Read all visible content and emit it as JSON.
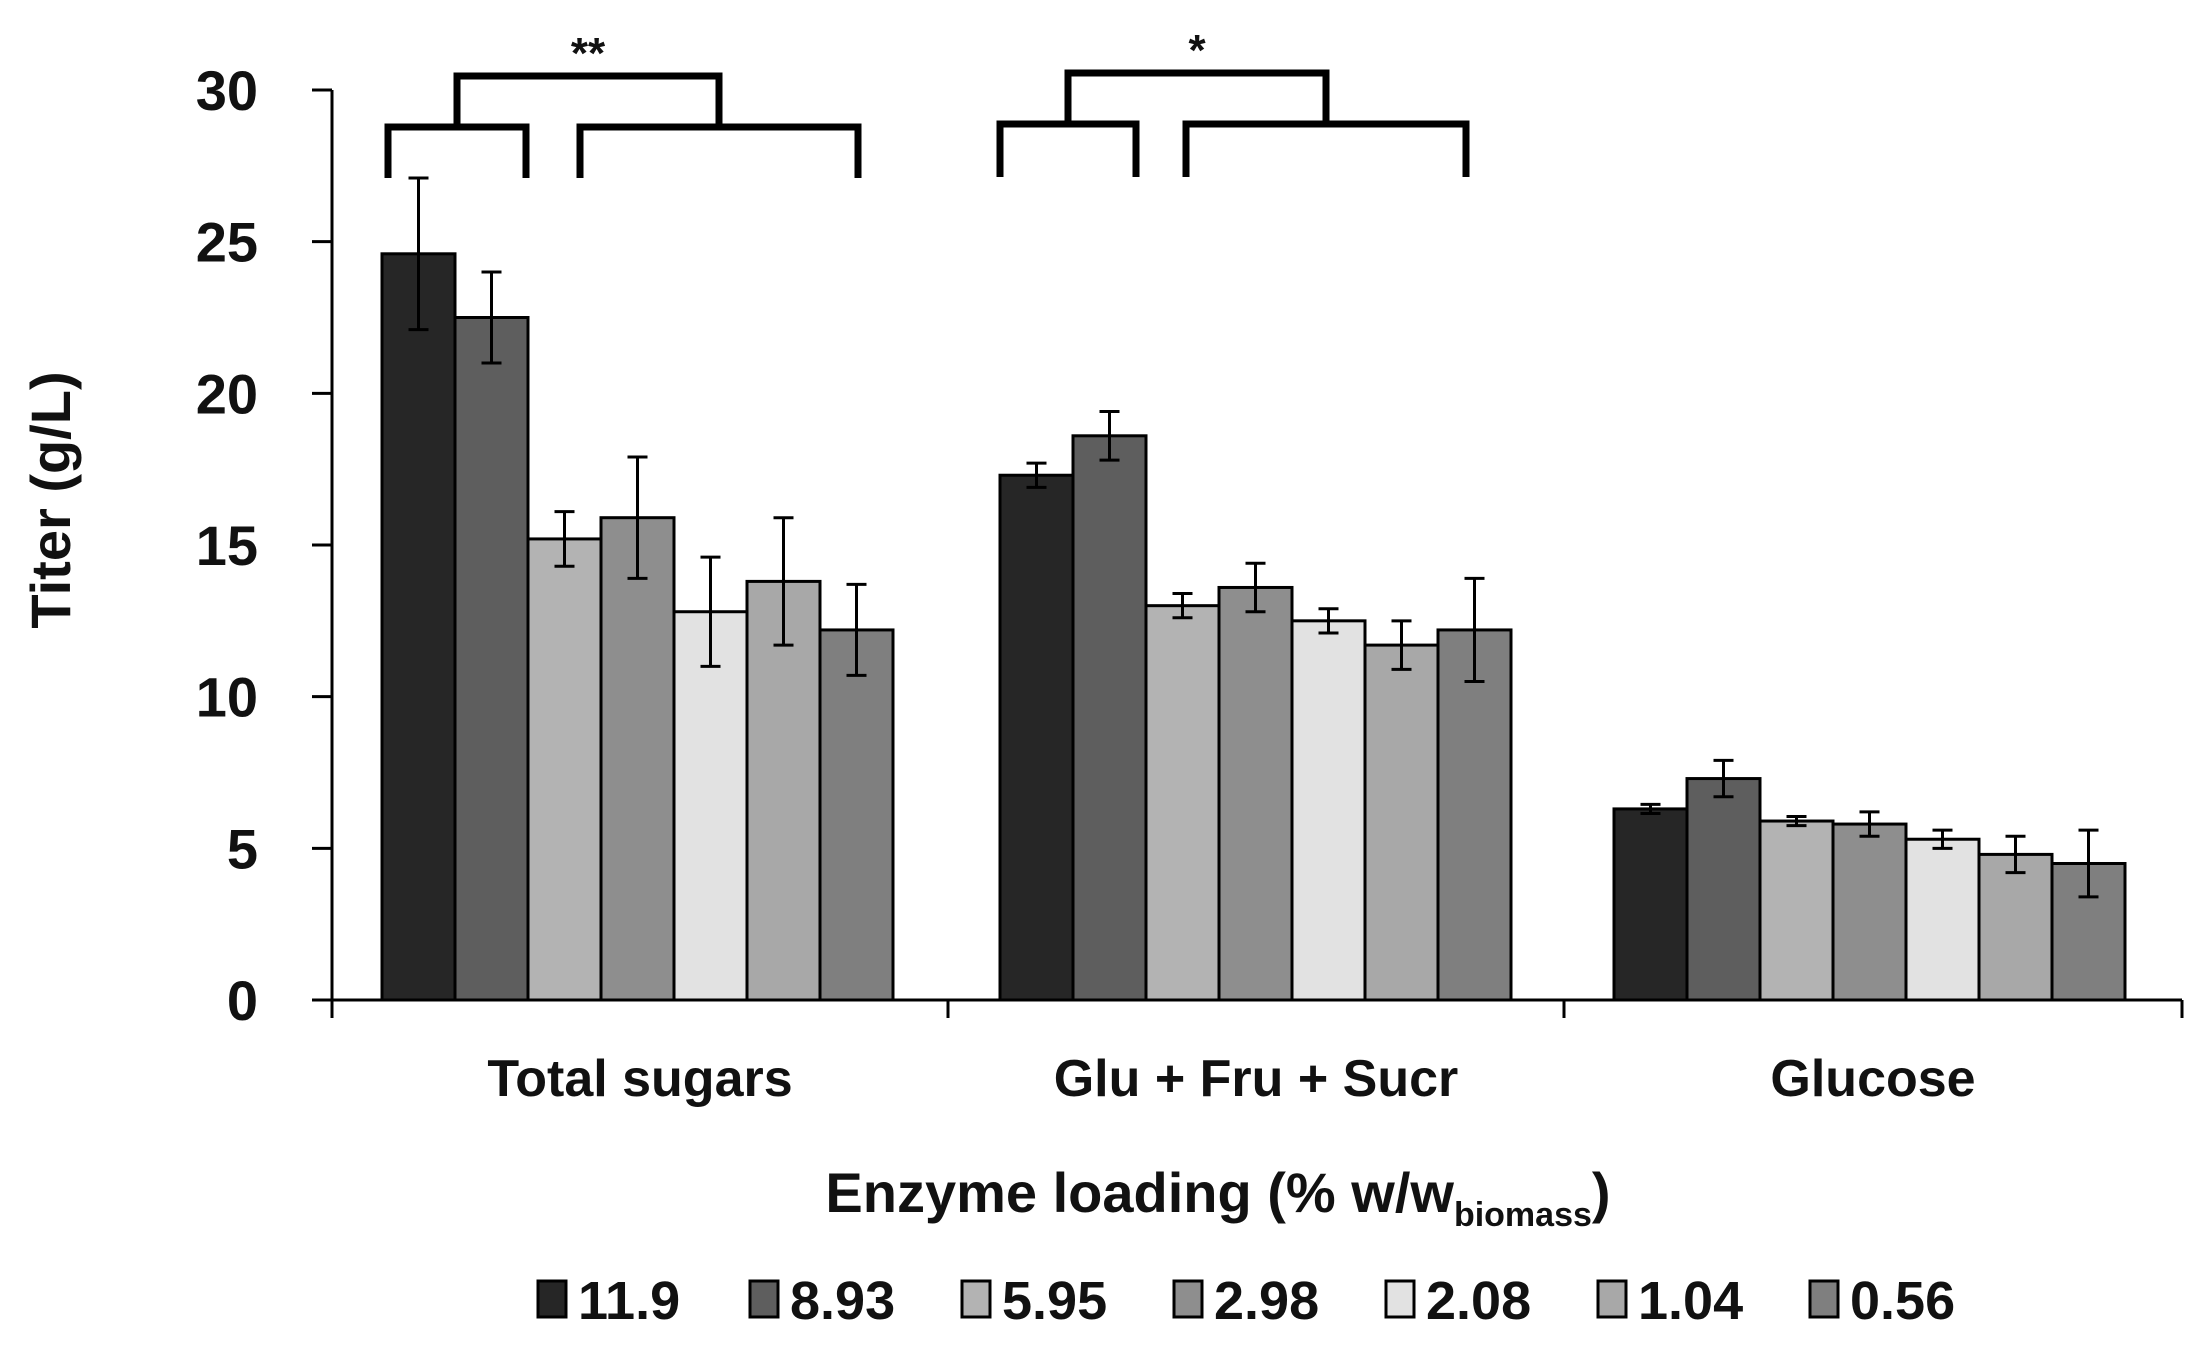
{
  "chart_data": {
    "type": "bar",
    "title": "",
    "ylabel": "Titer (g/L)",
    "xlabel": "Enzyme loading (% w/w",
    "xlabel_subscript": "biomass",
    "xlabel_close": ")",
    "ylim": [
      0,
      30
    ],
    "yticks": [
      "0",
      "5",
      "10",
      "15",
      "20",
      "25",
      "30"
    ],
    "legend_position": "bottom",
    "categories": [
      "Total sugars",
      "Glu + Fru + Sucr",
      "Glucose"
    ],
    "series": [
      {
        "name": "11.9",
        "color": "#262626",
        "values": [
          24.6,
          17.3,
          6.3
        ],
        "errors": [
          2.5,
          0.4,
          0.15
        ]
      },
      {
        "name": "8.93",
        "color": "#5e5e5e",
        "values": [
          22.5,
          18.6,
          7.3
        ],
        "errors": [
          1.5,
          0.8,
          0.6
        ]
      },
      {
        "name": "5.95",
        "color": "#b3b3b3",
        "values": [
          15.2,
          13.0,
          5.9
        ],
        "errors": [
          0.9,
          0.4,
          0.15
        ]
      },
      {
        "name": "2.98",
        "color": "#8e8e8e",
        "values": [
          15.9,
          13.6,
          5.8
        ],
        "errors": [
          2.0,
          0.8,
          0.4
        ]
      },
      {
        "name": "2.08",
        "color": "#e2e2e2",
        "values": [
          12.8,
          12.5,
          5.3
        ],
        "errors": [
          1.8,
          0.4,
          0.3
        ]
      },
      {
        "name": "1.04",
        "color": "#a8a8a8",
        "values": [
          13.8,
          11.7,
          4.8
        ],
        "errors": [
          2.1,
          0.8,
          0.6
        ]
      },
      {
        "name": "0.56",
        "color": "#7f7f7f",
        "values": [
          12.2,
          12.2,
          4.5
        ],
        "errors": [
          1.5,
          1.7,
          1.1
        ]
      }
    ],
    "significance": [
      {
        "category": "Total sugars",
        "label": "**"
      },
      {
        "category": "Glu + Fru + Sucr",
        "label": "*"
      }
    ]
  }
}
